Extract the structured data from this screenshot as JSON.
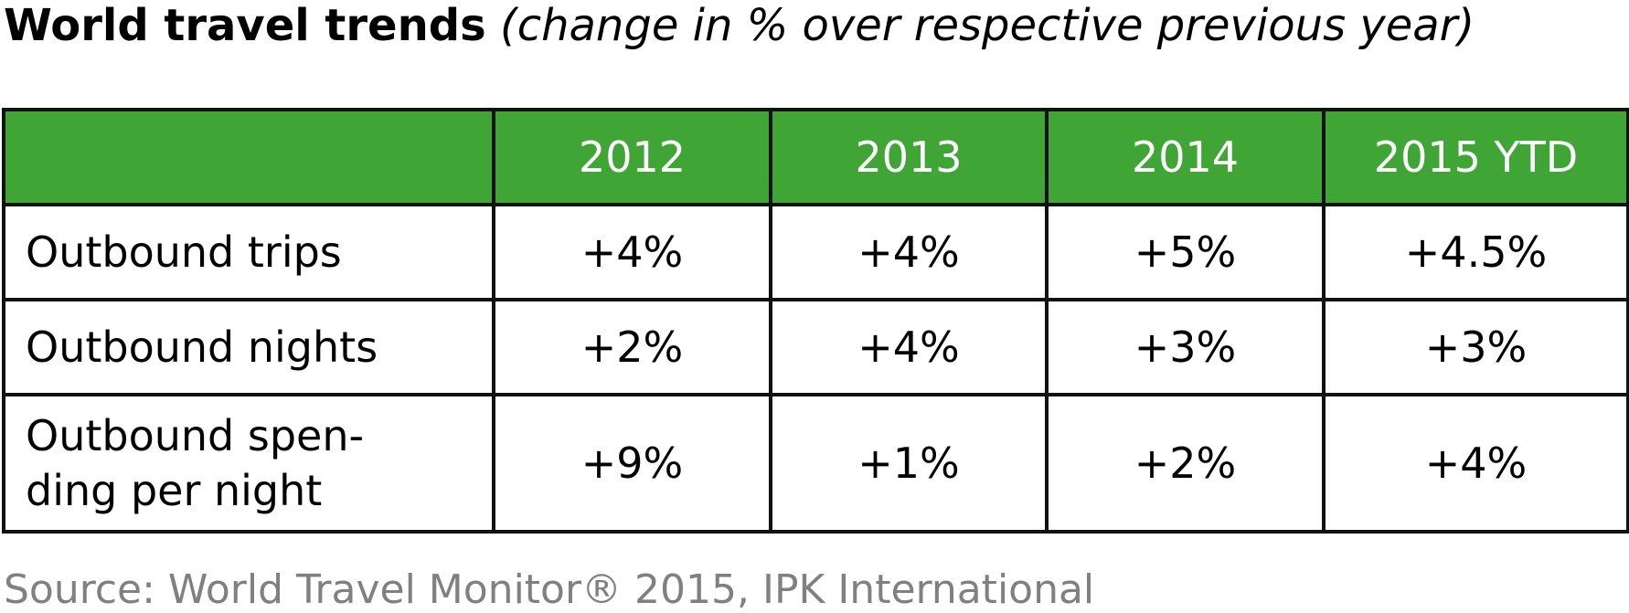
{
  "header": {
    "title": "World travel trends",
    "subtitle": "(change in % over respective previous year)"
  },
  "table": {
    "columns": [
      "2012",
      "2013",
      "2014",
      "2015 YTD"
    ],
    "rows": [
      [
        "Outbound trips",
        "+4%",
        "+4%",
        "+5%",
        "+4.5%"
      ],
      [
        "Outbound nights",
        "+2%",
        "+4%",
        "+3%",
        "+3%"
      ],
      [
        "Outbound spen-\nding per night",
        "+9%",
        "+1%",
        "+2%",
        "+4%"
      ]
    ]
  },
  "source": "Source: World Travel Monitor® 2015, IPK International"
}
